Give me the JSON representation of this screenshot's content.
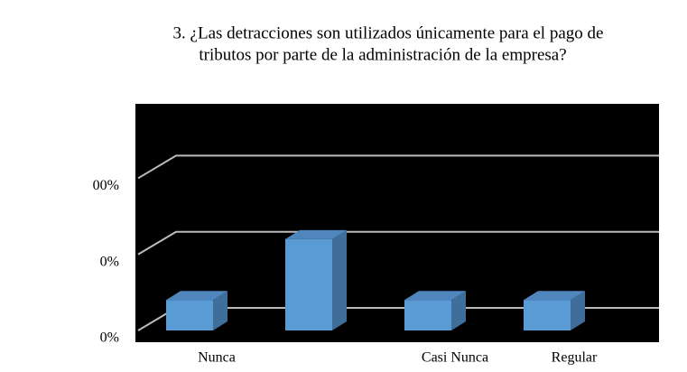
{
  "chart_data": {
    "type": "bar3d",
    "title": "3. ¿Las detracciones son utilizados únicamente para el  pago de",
    "subtitle": "tributos por parte de la administración de la empresa?",
    "categories": [
      "Nunca",
      null,
      "Casi Nunca",
      "Regular"
    ],
    "values": [
      20,
      60,
      20,
      20
    ],
    "color": "#5b9bd5",
    "ylim": [
      0,
      140
    ],
    "yticks": [
      {
        "value": 0,
        "label": "0%"
      },
      {
        "value": 50,
        "label": "0%"
      },
      {
        "value": 100,
        "label": "00%"
      }
    ],
    "grid": true
  }
}
